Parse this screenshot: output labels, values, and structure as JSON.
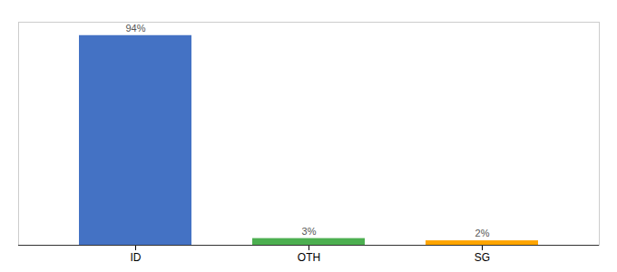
{
  "chart_data": {
    "type": "bar",
    "categories": [
      "ID",
      "OTH",
      "SG"
    ],
    "values": [
      94,
      3,
      2
    ],
    "value_labels": [
      "94%",
      "3%",
      "2%"
    ],
    "colors": [
      "#4472c4",
      "#4caf50",
      "#ffa500"
    ],
    "ylim": [
      0,
      100
    ],
    "data_labels": true,
    "tick_labels": "x",
    "grid": false
  }
}
